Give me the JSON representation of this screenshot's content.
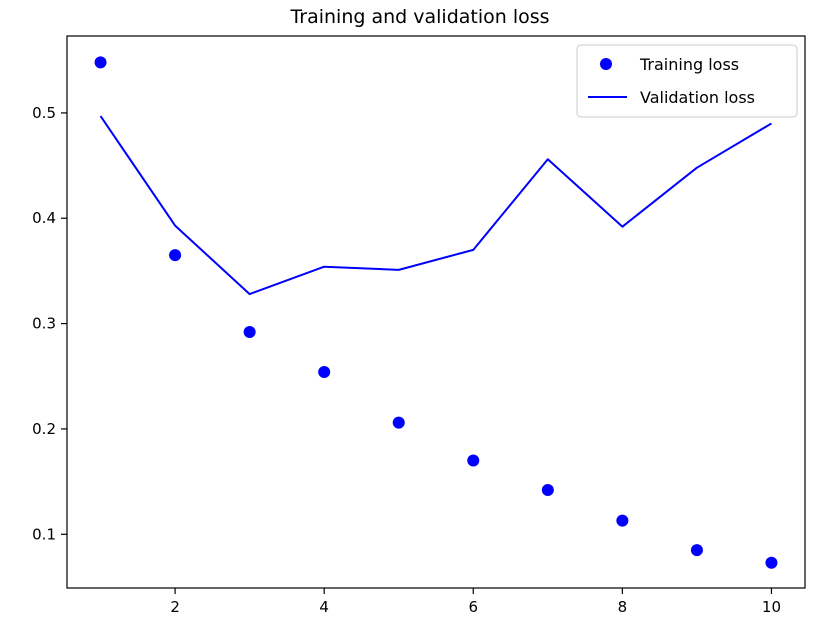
{
  "chart_data": {
    "type": "line",
    "title": "Training and validation loss",
    "xlabel": "",
    "ylabel": "",
    "x": [
      1,
      2,
      3,
      4,
      5,
      6,
      7,
      8,
      9,
      10
    ],
    "xlim": [
      0.55,
      10.45
    ],
    "ylim": [
      0.049,
      0.573
    ],
    "xticks": [
      2,
      4,
      6,
      8,
      10
    ],
    "yticks": [
      0.1,
      0.2,
      0.3,
      0.4,
      0.5
    ],
    "grid": false,
    "legend_position": "top-right",
    "series": [
      {
        "name": "Training loss",
        "style": "markers",
        "color": "#0000ff",
        "values": [
          0.548,
          0.365,
          0.292,
          0.254,
          0.206,
          0.17,
          0.142,
          0.113,
          0.085,
          0.073
        ]
      },
      {
        "name": "Validation loss",
        "style": "line",
        "color": "#0000ff",
        "values": [
          0.497,
          0.393,
          0.328,
          0.354,
          0.351,
          0.37,
          0.456,
          0.392,
          0.448,
          0.49
        ]
      }
    ]
  }
}
